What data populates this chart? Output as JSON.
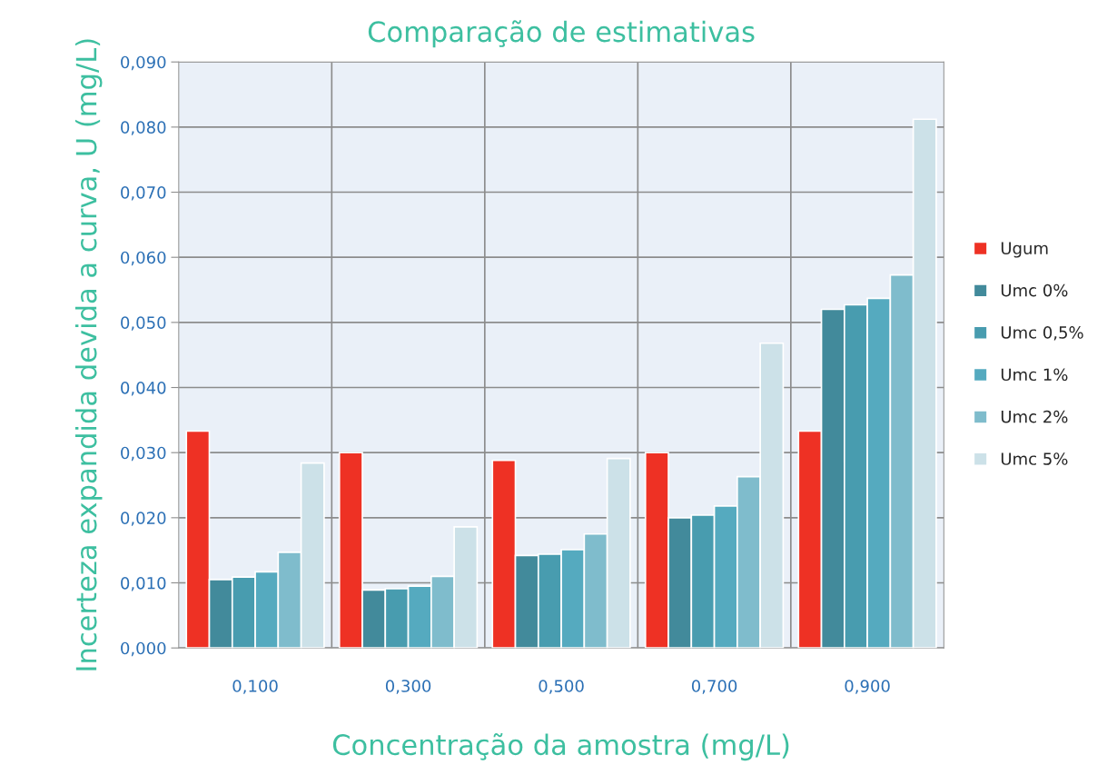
{
  "chart_data": {
    "type": "bar",
    "title": "Comparação de estimativas",
    "xlabel": "Concentração da amostra (mg/L)",
    "ylabel": "Incerteza expandida devida a curva, U (mg/L)",
    "categories": [
      "0,100",
      "0,300",
      "0,500",
      "0,700",
      "0,900"
    ],
    "series": [
      {
        "name": "Ugum",
        "color": "#ee3124",
        "values": [
          0.0333,
          0.03,
          0.0288,
          0.03,
          0.0333
        ]
      },
      {
        "name": "Umc 0%",
        "color": "#428a9b",
        "values": [
          0.0105,
          0.0089,
          0.0142,
          0.02,
          0.052
        ]
      },
      {
        "name": "Umc 0,5%",
        "color": "#489caf",
        "values": [
          0.0109,
          0.0091,
          0.0144,
          0.0204,
          0.0527
        ]
      },
      {
        "name": "Umc 1%",
        "color": "#55aabf",
        "values": [
          0.0117,
          0.0095,
          0.0151,
          0.0218,
          0.0537
        ]
      },
      {
        "name": "Umc 2%",
        "color": "#7fbccc",
        "values": [
          0.0147,
          0.011,
          0.0175,
          0.0263,
          0.0573
        ]
      },
      {
        "name": "Umc 5%",
        "color": "#cce1e8",
        "values": [
          0.0284,
          0.0186,
          0.0291,
          0.0468,
          0.0812
        ]
      }
    ],
    "ylim": [
      0,
      0.09
    ],
    "yticks": [
      {
        "value": 0,
        "label": "0,000"
      },
      {
        "value": 0.01,
        "label": "0,010"
      },
      {
        "value": 0.02,
        "label": "0,020"
      },
      {
        "value": 0.03,
        "label": "0,030"
      },
      {
        "value": 0.04,
        "label": "0,040"
      },
      {
        "value": 0.05,
        "label": "0,050"
      },
      {
        "value": 0.06,
        "label": "0,060"
      },
      {
        "value": 0.07,
        "label": "0,070"
      },
      {
        "value": 0.08,
        "label": "0,080"
      },
      {
        "value": 0.09,
        "label": "0,090"
      }
    ],
    "grid": true,
    "legend": "right"
  }
}
